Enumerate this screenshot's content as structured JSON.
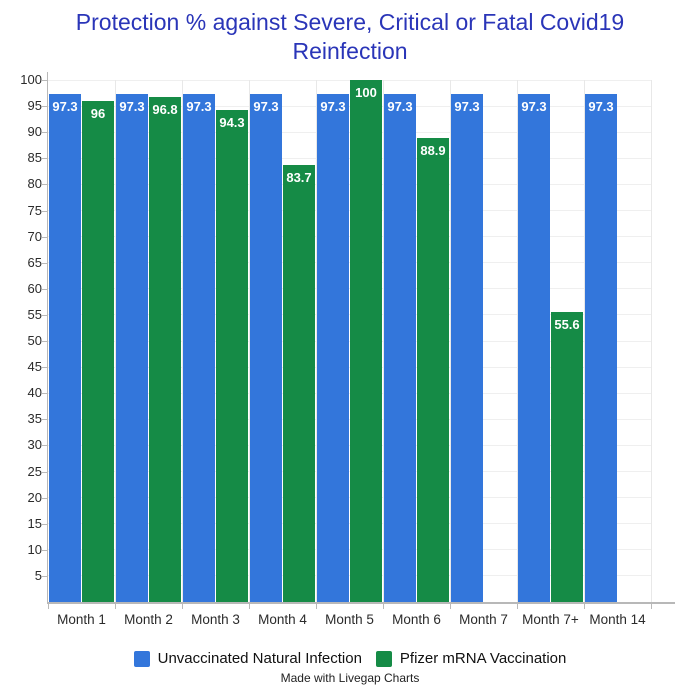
{
  "chart_data": {
    "type": "bar",
    "title": "Protection % against Severe, Critical or Fatal Covid19 Reinfection",
    "title_color": "#2a35b8",
    "categories": [
      "Month 1",
      "Month 2",
      "Month 3",
      "Month 4",
      "Month 5",
      "Month 6",
      "Month 7",
      "Month 7+",
      "Month 14"
    ],
    "series": [
      {
        "name": "Unvaccinated Natural Infection",
        "color": "#3376db",
        "values": [
          97.3,
          97.3,
          97.3,
          97.3,
          97.3,
          97.3,
          97.3,
          97.3,
          97.3
        ]
      },
      {
        "name": "Pfizer mRNA Vaccination",
        "color": "#158b46",
        "values": [
          96,
          96.8,
          94.3,
          83.7,
          100,
          88.9,
          null,
          55.6,
          null
        ]
      }
    ],
    "ylim": [
      0,
      100
    ],
    "ytick_step": 5,
    "ytick_labels": [
      "5",
      "10",
      "15",
      "20",
      "25",
      "30",
      "35",
      "40",
      "45",
      "50",
      "55",
      "60",
      "65",
      "70",
      "75",
      "80",
      "85",
      "90",
      "95",
      "100"
    ],
    "grid": true,
    "legend_position": "bottom",
    "data_labels": true,
    "credit": "Made with Livegap Charts"
  }
}
